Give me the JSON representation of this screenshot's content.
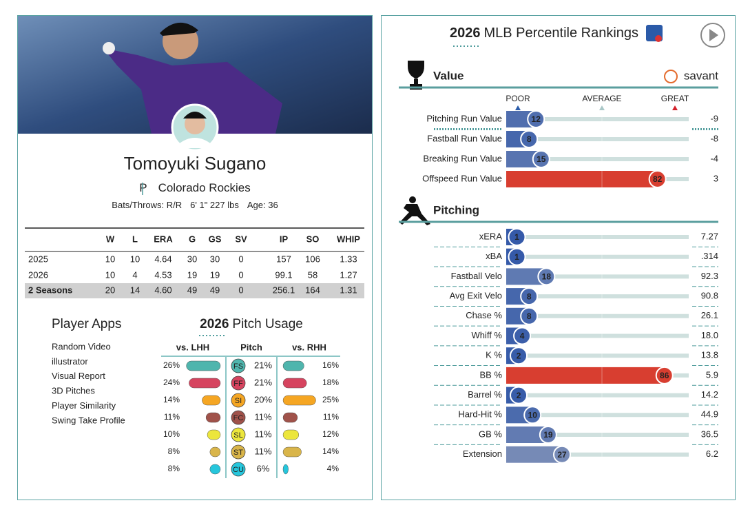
{
  "player": {
    "name": "Tomoyuki Sugano",
    "position": "P",
    "team": "Colorado Rockies",
    "bats_throws": "Bats/Throws: R/R",
    "height_weight": "6' 1\" 227 lbs",
    "age": "Age: 36"
  },
  "stats_table": {
    "headers": [
      "W",
      "L",
      "ERA",
      "G",
      "GS",
      "SV",
      "IP",
      "SO",
      "WHIP"
    ],
    "rows": [
      {
        "label": "2025",
        "cells": [
          "10",
          "10",
          "4.64",
          "30",
          "30",
          "0",
          "157",
          "106",
          "1.33"
        ]
      },
      {
        "label": "2026",
        "cells": [
          "10",
          "4",
          "4.53",
          "19",
          "19",
          "0",
          "99.1",
          "58",
          "1.27"
        ]
      },
      {
        "label": "2 Seasons",
        "cells": [
          "20",
          "14",
          "4.60",
          "49",
          "49",
          "0",
          "256.1",
          "164",
          "1.31"
        ]
      }
    ]
  },
  "player_apps": {
    "title": "Player Apps",
    "links": [
      "Random Video",
      "illustrator",
      "Visual Report",
      "3D Pitches",
      "Player Similarity",
      "Swing Take Profile"
    ]
  },
  "pitch_usage": {
    "year": "2026",
    "title": "Pitch Usage",
    "headers": [
      "vs. LHH",
      "Pitch",
      "vs. RHH"
    ],
    "rows": [
      {
        "code": "FS",
        "color": "#4fb5ad",
        "vs_lhh": 26,
        "vs_lhh_label": "26%",
        "overall": 21,
        "overall_label": "21%",
        "vs_rhh": 16,
        "vs_rhh_label": "16%"
      },
      {
        "code": "FF",
        "color": "#d6445f",
        "vs_lhh": 24,
        "vs_lhh_label": "24%",
        "overall": 21,
        "overall_label": "21%",
        "vs_rhh": 18,
        "vs_rhh_label": "18%"
      },
      {
        "code": "SI",
        "color": "#f5a623",
        "vs_lhh": 14,
        "vs_lhh_label": "14%",
        "overall": 20,
        "overall_label": "20%",
        "vs_rhh": 25,
        "vs_rhh_label": "25%"
      },
      {
        "code": "FC",
        "color": "#a0524a",
        "vs_lhh": 11,
        "vs_lhh_label": "11%",
        "overall": 11,
        "overall_label": "11%",
        "vs_rhh": 11,
        "vs_rhh_label": "11%"
      },
      {
        "code": "SL",
        "color": "#ece63c",
        "vs_lhh": 10,
        "vs_lhh_label": "10%",
        "overall": 11,
        "overall_label": "11%",
        "vs_rhh": 12,
        "vs_rhh_label": "12%"
      },
      {
        "code": "ST",
        "color": "#d9b54a",
        "vs_lhh": 8,
        "vs_lhh_label": "8%",
        "overall": 11,
        "overall_label": "11%",
        "vs_rhh": 14,
        "vs_rhh_label": "14%"
      },
      {
        "code": "CU",
        "color": "#26c6dc",
        "vs_lhh": 8,
        "vs_lhh_label": "8%",
        "overall": 6,
        "overall_label": "6%",
        "vs_rhh": 4,
        "vs_rhh_label": "4%"
      }
    ]
  },
  "percentile_rankings": {
    "year": "2026",
    "title": "MLB Percentile Rankings",
    "brand": "savant",
    "scale_labels": [
      "POOR",
      "AVERAGE",
      "GREAT"
    ],
    "sections": [
      {
        "title": "Value",
        "rows": [
          {
            "label": "Pitching Run Value",
            "percentile": 12,
            "value": "-9"
          },
          {
            "label": "Fastball Run Value",
            "percentile": 8,
            "value": "-8"
          },
          {
            "label": "Breaking Run Value",
            "percentile": 15,
            "value": "-4"
          },
          {
            "label": "Offspeed Run Value",
            "percentile": 82,
            "value": "3"
          }
        ]
      },
      {
        "title": "Pitching",
        "rows": [
          {
            "label": "xERA",
            "percentile": 1,
            "value": "7.27"
          },
          {
            "label": "xBA",
            "percentile": 1,
            "value": ".314"
          },
          {
            "label": "Fastball Velo",
            "percentile": 18,
            "value": "92.3"
          },
          {
            "label": "Avg Exit Velo",
            "percentile": 8,
            "value": "90.8"
          },
          {
            "label": "Chase %",
            "percentile": 8,
            "value": "26.1"
          },
          {
            "label": "Whiff %",
            "percentile": 4,
            "value": "18.0"
          },
          {
            "label": "K %",
            "percentile": 2,
            "value": "13.8"
          },
          {
            "label": "BB %",
            "percentile": 86,
            "value": "5.9"
          },
          {
            "label": "Barrel %",
            "percentile": 2,
            "value": "14.2"
          },
          {
            "label": "Hard-Hit %",
            "percentile": 10,
            "value": "44.9"
          },
          {
            "label": "GB %",
            "percentile": 19,
            "value": "36.5"
          },
          {
            "label": "Extension",
            "percentile": 27,
            "value": "6.2"
          }
        ]
      }
    ]
  }
}
